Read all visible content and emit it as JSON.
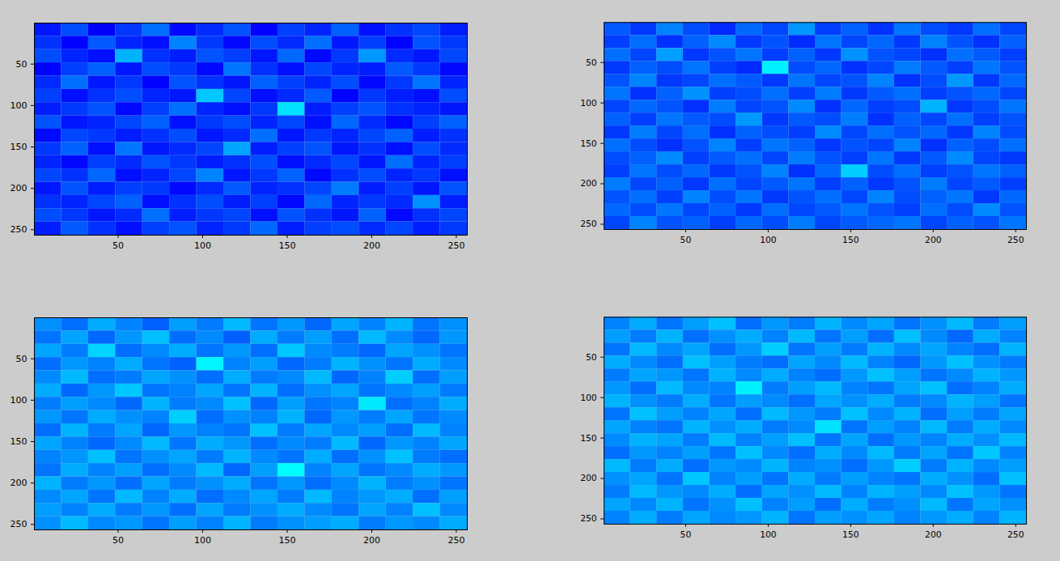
{
  "chart_data": [
    {
      "type": "heatmap",
      "xlim": [
        0.5,
        256.5
      ],
      "ylim": [
        0.5,
        256.5
      ],
      "xticks": [
        50,
        100,
        150,
        200,
        250
      ],
      "yticks": [
        50,
        100,
        150,
        200,
        250
      ],
      "color_range": [
        0,
        150
      ],
      "values": [
        [
          22,
          30,
          18,
          27,
          35,
          20,
          25,
          31,
          19,
          28,
          24,
          33,
          21,
          26,
          29,
          23
        ],
        [
          26,
          19,
          32,
          24,
          21,
          38,
          27,
          20,
          30,
          25,
          35,
          22,
          28,
          19,
          31,
          27
        ],
        [
          30,
          24,
          21,
          45,
          26,
          23,
          31,
          28,
          22,
          34,
          20,
          27,
          41,
          25,
          22,
          29
        ],
        [
          19,
          28,
          33,
          22,
          30,
          27,
          20,
          36,
          26,
          21,
          29,
          24,
          23,
          32,
          27,
          20
        ],
        [
          25,
          35,
          22,
          27,
          19,
          31,
          26,
          22,
          33,
          28,
          24,
          30,
          20,
          27,
          36,
          24
        ],
        [
          28,
          21,
          26,
          30,
          24,
          22,
          48,
          29,
          21,
          25,
          32,
          19,
          27,
          23,
          21,
          30
        ],
        [
          23,
          27,
          31,
          20,
          28,
          35,
          24,
          21,
          27,
          52,
          23,
          28,
          31,
          26,
          24,
          22
        ],
        [
          31,
          22,
          24,
          29,
          33,
          21,
          27,
          30,
          24,
          29,
          21,
          34,
          25,
          20,
          28,
          33
        ],
        [
          20,
          29,
          27,
          23,
          26,
          30,
          22,
          25,
          35,
          22,
          27,
          24,
          29,
          33,
          23,
          26
        ],
        [
          27,
          33,
          21,
          36,
          22,
          25,
          29,
          43,
          23,
          28,
          31,
          22,
          26,
          21,
          30,
          25
        ],
        [
          24,
          20,
          28,
          25,
          31,
          27,
          23,
          26,
          30,
          21,
          25,
          29,
          22,
          35,
          24,
          28
        ],
        [
          29,
          26,
          34,
          21,
          24,
          29,
          38,
          22,
          27,
          33,
          20,
          26,
          30,
          24,
          27,
          21
        ],
        [
          22,
          31,
          23,
          28,
          27,
          20,
          25,
          32,
          24,
          26,
          29,
          37,
          23,
          28,
          22,
          31
        ],
        [
          26,
          24,
          29,
          33,
          21,
          26,
          30,
          23,
          28,
          20,
          34,
          24,
          27,
          25,
          40,
          23
        ],
        [
          30,
          27,
          22,
          25,
          35,
          23,
          27,
          29,
          21,
          31,
          26,
          22,
          33,
          20,
          26,
          29
        ],
        [
          23,
          32,
          26,
          21,
          28,
          31,
          24,
          27,
          34,
          23,
          28,
          30,
          25,
          29,
          23,
          27
        ]
      ]
    },
    {
      "type": "heatmap",
      "xlim": [
        0.5,
        256.5
      ],
      "ylim": [
        0.5,
        256.5
      ],
      "xticks": [
        50,
        100,
        150,
        200,
        250
      ],
      "yticks": [
        50,
        100,
        150,
        200,
        250
      ],
      "color_range": [
        0,
        150
      ],
      "values": [
        [
          32,
          27,
          38,
          30,
          25,
          34,
          29,
          41,
          28,
          33,
          26,
          36,
          30,
          27,
          35,
          29
        ],
        [
          28,
          35,
          26,
          33,
          39,
          27,
          31,
          25,
          36,
          29,
          34,
          27,
          38,
          31,
          26,
          33
        ],
        [
          35,
          29,
          42,
          27,
          31,
          36,
          28,
          33,
          27,
          40,
          31,
          29,
          26,
          35,
          32,
          28
        ],
        [
          27,
          33,
          30,
          36,
          28,
          25,
          54,
          30,
          34,
          26,
          29,
          37,
          32,
          28,
          36,
          31
        ],
        [
          31,
          38,
          27,
          29,
          35,
          32,
          27,
          36,
          29,
          31,
          38,
          26,
          30,
          41,
          27,
          34
        ],
        [
          36,
          26,
          33,
          40,
          28,
          30,
          35,
          28,
          37,
          27,
          32,
          35,
          28,
          31,
          34,
          29
        ],
        [
          29,
          34,
          31,
          26,
          37,
          29,
          31,
          39,
          26,
          34,
          28,
          30,
          45,
          27,
          30,
          36
        ],
        [
          33,
          28,
          36,
          32,
          30,
          41,
          27,
          32,
          30,
          37,
          26,
          33,
          29,
          35,
          28,
          31
        ],
        [
          27,
          37,
          29,
          35,
          26,
          33,
          30,
          28,
          39,
          29,
          35,
          31,
          34,
          27,
          38,
          30
        ],
        [
          35,
          30,
          26,
          31,
          38,
          28,
          36,
          33,
          27,
          31,
          29,
          38,
          26,
          33,
          30,
          35
        ],
        [
          30,
          33,
          39,
          28,
          32,
          35,
          29,
          37,
          31,
          28,
          36,
          27,
          32,
          39,
          29,
          27
        ],
        [
          28,
          36,
          30,
          34,
          27,
          31,
          38,
          26,
          34,
          49,
          30,
          35,
          28,
          31,
          36,
          33
        ],
        [
          37,
          29,
          33,
          27,
          35,
          29,
          32,
          36,
          28,
          33,
          27,
          31,
          37,
          29,
          32,
          28
        ],
        [
          31,
          35,
          28,
          38,
          30,
          36,
          27,
          31,
          35,
          29,
          38,
          30,
          33,
          36,
          27,
          34
        ],
        [
          34,
          30,
          36,
          29,
          33,
          27,
          35,
          29,
          32,
          36,
          31,
          28,
          35,
          30,
          39,
          31
        ],
        [
          29,
          38,
          31,
          33,
          28,
          34,
          30,
          37,
          29,
          32,
          34,
          36,
          29,
          33,
          31,
          36
        ]
      ]
    },
    {
      "type": "heatmap",
      "xlim": [
        0.5,
        256.5
      ],
      "ylim": [
        0.5,
        256.5
      ],
      "xticks": [
        50,
        100,
        150,
        200,
        250
      ],
      "yticks": [
        50,
        100,
        150,
        200,
        250
      ],
      "color_range": [
        0,
        150
      ],
      "values": [
        [
          40,
          35,
          44,
          38,
          33,
          42,
          37,
          46,
          36,
          41,
          34,
          43,
          38,
          45,
          36,
          40
        ],
        [
          36,
          43,
          34,
          41,
          47,
          35,
          39,
          33,
          44,
          37,
          42,
          35,
          46,
          39,
          34,
          41
        ],
        [
          43,
          37,
          50,
          35,
          39,
          44,
          36,
          41,
          35,
          48,
          39,
          37,
          34,
          43,
          40,
          36
        ],
        [
          35,
          41,
          38,
          44,
          36,
          33,
          55,
          38,
          42,
          34,
          37,
          45,
          40,
          36,
          44,
          39
        ],
        [
          39,
          46,
          35,
          37,
          43,
          40,
          35,
          44,
          37,
          39,
          46,
          34,
          38,
          49,
          35,
          42
        ],
        [
          44,
          34,
          41,
          48,
          36,
          38,
          43,
          36,
          45,
          35,
          40,
          43,
          36,
          39,
          42,
          37
        ],
        [
          37,
          42,
          39,
          34,
          45,
          37,
          39,
          47,
          34,
          42,
          36,
          38,
          53,
          35,
          38,
          44
        ],
        [
          41,
          36,
          44,
          40,
          38,
          49,
          35,
          40,
          38,
          45,
          34,
          41,
          37,
          43,
          36,
          39
        ],
        [
          35,
          45,
          37,
          43,
          34,
          41,
          38,
          36,
          47,
          37,
          43,
          39,
          42,
          35,
          46,
          38
        ],
        [
          43,
          38,
          34,
          39,
          46,
          36,
          44,
          41,
          35,
          39,
          37,
          46,
          34,
          41,
          38,
          43
        ],
        [
          38,
          41,
          47,
          36,
          40,
          43,
          37,
          45,
          39,
          36,
          44,
          35,
          40,
          47,
          37,
          35
        ],
        [
          36,
          44,
          38,
          42,
          35,
          39,
          46,
          34,
          42,
          56,
          38,
          43,
          36,
          39,
          44,
          41
        ],
        [
          45,
          37,
          41,
          35,
          43,
          37,
          40,
          44,
          36,
          41,
          35,
          39,
          45,
          37,
          40,
          36
        ],
        [
          39,
          43,
          36,
          46,
          38,
          44,
          35,
          39,
          43,
          37,
          46,
          38,
          41,
          44,
          35,
          42
        ],
        [
          42,
          38,
          44,
          37,
          41,
          35,
          43,
          37,
          40,
          44,
          39,
          36,
          43,
          38,
          47,
          39
        ],
        [
          40,
          46,
          39,
          41,
          36,
          42,
          38,
          45,
          37,
          40,
          42,
          44,
          37,
          41,
          39,
          44
        ]
      ]
    },
    {
      "type": "heatmap",
      "xlim": [
        0.5,
        256.5
      ],
      "ylim": [
        0.5,
        256.5
      ],
      "xticks": [
        50,
        100,
        150,
        200,
        250
      ],
      "yticks": [
        50,
        100,
        150,
        200,
        250
      ],
      "color_range": [
        0,
        150
      ],
      "values": [
        [
          38,
          44,
          36,
          42,
          47,
          35,
          41,
          37,
          45,
          39,
          43,
          36,
          40,
          46,
          37,
          42
        ],
        [
          42,
          37,
          45,
          35,
          40,
          44,
          38,
          46,
          36,
          42,
          35,
          47,
          39,
          34,
          44,
          38
        ],
        [
          36,
          46,
          39,
          43,
          35,
          41,
          49,
          36,
          42,
          37,
          45,
          39,
          43,
          38,
          35,
          45
        ],
        [
          44,
          39,
          35,
          47,
          42,
          37,
          35,
          43,
          39,
          46,
          38,
          34,
          41,
          47,
          40,
          37
        ],
        [
          37,
          43,
          41,
          36,
          45,
          39,
          44,
          38,
          35,
          41,
          47,
          42,
          36,
          39,
          45,
          41
        ],
        [
          41,
          35,
          46,
          39,
          38,
          54,
          37,
          42,
          46,
          38,
          36,
          43,
          47,
          35,
          38,
          44
        ],
        [
          45,
          40,
          37,
          44,
          36,
          42,
          39,
          35,
          43,
          40,
          44,
          37,
          39,
          45,
          42,
          36
        ],
        [
          36,
          47,
          42,
          38,
          43,
          35,
          46,
          41,
          37,
          47,
          39,
          45,
          35,
          42,
          37,
          43
        ],
        [
          43,
          38,
          36,
          45,
          40,
          44,
          37,
          39,
          52,
          36,
          42,
          38,
          46,
          37,
          44,
          39
        ],
        [
          39,
          45,
          43,
          37,
          46,
          38,
          42,
          47,
          36,
          43,
          35,
          41,
          38,
          44,
          40,
          46
        ],
        [
          35,
          41,
          38,
          42,
          36,
          47,
          39,
          35,
          44,
          39,
          46,
          37,
          43,
          36,
          48,
          38
        ],
        [
          46,
          37,
          44,
          35,
          41,
          39,
          45,
          38,
          40,
          35,
          41,
          49,
          37,
          45,
          39,
          42
        ],
        [
          40,
          43,
          36,
          48,
          38,
          42,
          36,
          44,
          37,
          42,
          38,
          36,
          44,
          40,
          35,
          47
        ],
        [
          37,
          46,
          41,
          39,
          44,
          35,
          43,
          40,
          46,
          38,
          45,
          42,
          39,
          47,
          41,
          36
        ],
        [
          43,
          39,
          45,
          36,
          40,
          47,
          38,
          42,
          35,
          44,
          37,
          40,
          46,
          36,
          43,
          40
        ],
        [
          38,
          44,
          37,
          43,
          39,
          41,
          45,
          36,
          42,
          40,
          43,
          38,
          41,
          44,
          38,
          45
        ]
      ]
    }
  ]
}
